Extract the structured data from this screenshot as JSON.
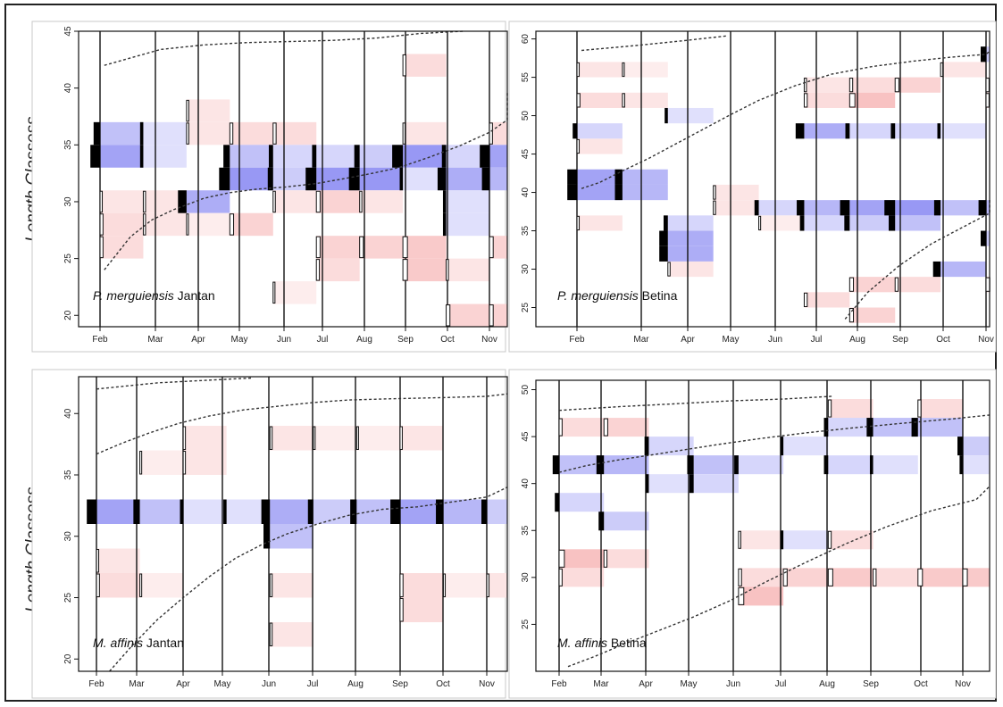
{
  "y_axis_label": "Length Classess",
  "colors": {
    "positive": "#f28a8a",
    "negative": "#7676f0",
    "peak": "#000000",
    "curve": "#333333"
  },
  "chart_data": [
    {
      "type": "heatmap",
      "panel": "top-left",
      "species_italic": "P. merguiensis",
      "sex": " Jantan",
      "xlabels": [
        "Feb",
        "Mar",
        "Apr",
        "May",
        "Jun",
        "Jul",
        "Aug",
        "Sep",
        "Oct",
        "Nov"
      ],
      "ylim": [
        19,
        45
      ],
      "yticks": [
        20,
        25,
        30,
        35,
        40,
        45
      ],
      "growth_curves": [
        {
          "x": [
            0.1,
            1.4,
            2.4,
            3.4,
            4.4,
            5.4,
            6.4,
            7.4,
            8.4
          ],
          "y": [
            42,
            43.4,
            43.8,
            44,
            44.1,
            44.2,
            44.4,
            44.8,
            45
          ]
        },
        {
          "x": [
            0.1,
            0.7,
            1.2,
            1.7,
            2.4,
            3.0,
            3.6,
            4.3,
            5.0,
            5.6,
            6.3,
            6.9,
            7.6,
            8.3,
            9.0,
            9.6,
            10.5
          ],
          "y": [
            24,
            26.9,
            28.4,
            29.3,
            30.3,
            30.8,
            31.1,
            31.3,
            31.6,
            32,
            32.5,
            33,
            33.9,
            34.9,
            36.1,
            37.2,
            39.6
          ]
        }
      ],
      "bins": [
        {
          "m": 0,
          "y": 36,
          "v": -0.6
        },
        {
          "m": 0,
          "y": 34,
          "v": -0.9
        },
        {
          "m": 0,
          "y": 30,
          "v": 0.3
        },
        {
          "m": 0,
          "y": 28,
          "v": 0.4
        },
        {
          "m": 0,
          "y": 26,
          "v": 0.4
        },
        {
          "m": 1,
          "y": 36,
          "v": -0.3
        },
        {
          "m": 1,
          "y": 34,
          "v": -0.3
        },
        {
          "m": 1,
          "y": 30,
          "v": 0.3
        },
        {
          "m": 1,
          "y": 28,
          "v": 0.3
        },
        {
          "m": 2,
          "y": 38,
          "v": 0.3
        },
        {
          "m": 2,
          "y": 36,
          "v": 0.3
        },
        {
          "m": 2,
          "y": 30,
          "v": -0.8
        },
        {
          "m": 2,
          "y": 28,
          "v": 0.2
        },
        {
          "m": 3,
          "y": 36,
          "v": 0.4
        },
        {
          "m": 3,
          "y": 34,
          "v": -0.6
        },
        {
          "m": 3,
          "y": 32,
          "v": -1
        },
        {
          "m": 3,
          "y": 28,
          "v": 0.5
        },
        {
          "m": 4,
          "y": 36,
          "v": 0.4
        },
        {
          "m": 4,
          "y": 34,
          "v": -0.4
        },
        {
          "m": 4,
          "y": 32,
          "v": -0.5
        },
        {
          "m": 4,
          "y": 30,
          "v": 0.3
        },
        {
          "m": 4,
          "y": 22,
          "v": 0.2
        },
        {
          "m": 5,
          "y": 34,
          "v": -0.4
        },
        {
          "m": 5,
          "y": 32,
          "v": -1
        },
        {
          "m": 5,
          "y": 30,
          "v": 0.5
        },
        {
          "m": 5,
          "y": 26,
          "v": 0.5
        },
        {
          "m": 5,
          "y": 24,
          "v": 0.4
        },
        {
          "m": 6,
          "y": 34,
          "v": -0.5
        },
        {
          "m": 6,
          "y": 32,
          "v": -1
        },
        {
          "m": 6,
          "y": 30,
          "v": 0.3
        },
        {
          "m": 6,
          "y": 26,
          "v": 0.5
        },
        {
          "m": 7,
          "y": 42,
          "v": 0.4
        },
        {
          "m": 7,
          "y": 36,
          "v": 0.3
        },
        {
          "m": 7,
          "y": 34,
          "v": -1
        },
        {
          "m": 7,
          "y": 32,
          "v": -0.3
        },
        {
          "m": 7,
          "y": 26,
          "v": 0.6
        },
        {
          "m": 7,
          "y": 24,
          "v": 0.6
        },
        {
          "m": 8,
          "y": 34,
          "v": -0.4
        },
        {
          "m": 8,
          "y": 32,
          "v": -0.8
        },
        {
          "m": 8,
          "y": 30,
          "v": -0.3
        },
        {
          "m": 8,
          "y": 28,
          "v": -0.3
        },
        {
          "m": 8,
          "y": 24,
          "v": 0.3
        },
        {
          "m": 8,
          "y": 20,
          "v": 0.5
        },
        {
          "m": 9,
          "y": 36,
          "v": 0.4
        },
        {
          "m": 9,
          "y": 34,
          "v": -0.9
        },
        {
          "m": 9,
          "y": 32,
          "v": -0.7
        },
        {
          "m": 9,
          "y": 26,
          "v": 0.5
        },
        {
          "m": 9,
          "y": 20,
          "v": 0.5
        }
      ]
    },
    {
      "type": "heatmap",
      "panel": "top-right",
      "species_italic": "P. merguiensis",
      "sex": " Betina",
      "xlabels": [
        "Feb",
        "Mar",
        "Apr",
        "May",
        "Jun",
        "Jul",
        "Aug",
        "Sep",
        "Oct",
        "Nov"
      ],
      "ylim": [
        22.5,
        61
      ],
      "yticks": [
        25,
        30,
        35,
        40,
        45,
        50,
        55,
        60
      ],
      "growth_curves": [
        {
          "x": [
            0.1,
            1.4,
            2.4,
            3.3
          ],
          "y": [
            58.5,
            59.2,
            59.8,
            60.4
          ]
        },
        {
          "x": [
            0.1,
            0.5,
            1.0,
            1.6,
            2.2,
            2.8,
            3.4,
            4.0,
            4.8,
            5.6,
            6.5,
            7.4,
            8.2,
            9.0,
            10.3
          ],
          "y": [
            40.5,
            41.3,
            42.8,
            44.5,
            46.4,
            48.3,
            50.2,
            52,
            53.9,
            55.4,
            56.4,
            57.1,
            57.6,
            58,
            58.4
          ]
        },
        {
          "x": [
            5.9,
            6.4,
            7.1,
            7.8,
            8.5,
            9.3,
            10.3
          ],
          "y": [
            23.5,
            27,
            30.5,
            33.3,
            35.5,
            37.3,
            39.3
          ]
        }
      ],
      "bins": [
        {
          "m": 0,
          "y": 56,
          "v": 0.3
        },
        {
          "m": 0,
          "y": 52,
          "v": 0.4
        },
        {
          "m": 0,
          "y": 48,
          "v": -0.4
        },
        {
          "m": 0,
          "y": 46,
          "v": 0.3
        },
        {
          "m": 0,
          "y": 42,
          "v": -0.9
        },
        {
          "m": 0,
          "y": 40,
          "v": -0.9
        },
        {
          "m": 0,
          "y": 36,
          "v": 0.3
        },
        {
          "m": 1,
          "y": 56,
          "v": 0.2
        },
        {
          "m": 1,
          "y": 52,
          "v": 0.3
        },
        {
          "m": 1,
          "y": 42,
          "v": -0.7
        },
        {
          "m": 1,
          "y": 40,
          "v": -0.7
        },
        {
          "m": 2,
          "y": 50,
          "v": -0.3
        },
        {
          "m": 2,
          "y": 36,
          "v": -0.4
        },
        {
          "m": 2,
          "y": 34,
          "v": -0.8
        },
        {
          "m": 2,
          "y": 32,
          "v": -0.8
        },
        {
          "m": 2,
          "y": 30,
          "v": 0.3
        },
        {
          "m": 3,
          "y": 40,
          "v": 0.3
        },
        {
          "m": 3,
          "y": 38,
          "v": 0.3
        },
        {
          "m": 4,
          "y": 38,
          "v": -0.4
        },
        {
          "m": 4,
          "y": 36,
          "v": 0.2
        },
        {
          "m": 5,
          "y": 54,
          "v": 0.3
        },
        {
          "m": 5,
          "y": 52,
          "v": 0.4
        },
        {
          "m": 5,
          "y": 48,
          "v": -0.8
        },
        {
          "m": 5,
          "y": 38,
          "v": -0.7
        },
        {
          "m": 5,
          "y": 36,
          "v": -0.4
        },
        {
          "m": 5,
          "y": 26,
          "v": 0.4
        },
        {
          "m": 6,
          "y": 54,
          "v": 0.4
        },
        {
          "m": 6,
          "y": 52,
          "v": 0.7
        },
        {
          "m": 6,
          "y": 48,
          "v": -0.4
        },
        {
          "m": 6,
          "y": 38,
          "v": -0.9
        },
        {
          "m": 6,
          "y": 36,
          "v": -0.5
        },
        {
          "m": 6,
          "y": 28,
          "v": 0.5
        },
        {
          "m": 6,
          "y": 24,
          "v": 0.5
        },
        {
          "m": 7,
          "y": 54,
          "v": 0.5
        },
        {
          "m": 7,
          "y": 48,
          "v": -0.4
        },
        {
          "m": 7,
          "y": 38,
          "v": -1
        },
        {
          "m": 7,
          "y": 36,
          "v": -0.6
        },
        {
          "m": 7,
          "y": 28,
          "v": 0.4
        },
        {
          "m": 8,
          "y": 56,
          "v": 0.3
        },
        {
          "m": 8,
          "y": 48,
          "v": -0.3
        },
        {
          "m": 8,
          "y": 38,
          "v": -0.6
        },
        {
          "m": 8,
          "y": 30,
          "v": -0.7
        },
        {
          "m": 9,
          "y": 58,
          "v": -0.5
        },
        {
          "m": 9,
          "y": 54,
          "v": 0.4
        },
        {
          "m": 9,
          "y": 52,
          "v": 0.4
        },
        {
          "m": 9,
          "y": 38,
          "v": -0.7
        },
        {
          "m": 9,
          "y": 34,
          "v": -0.5
        },
        {
          "m": 9,
          "y": 28,
          "v": 0.5
        }
      ]
    },
    {
      "type": "heatmap",
      "panel": "bottom-left",
      "species_italic": "M. affinis",
      "sex": " Jantan",
      "xlabels": [
        "Feb",
        "Mar",
        "Apr",
        "May",
        "Jun",
        "Jul",
        "Aug",
        "Sep",
        "Oct",
        "Nov"
      ],
      "ylim": [
        19,
        43
      ],
      "yticks": [
        20,
        25,
        30,
        35,
        40
      ],
      "growth_curves": [
        {
          "x": [
            0,
            1.4,
            2.5,
            3.6
          ],
          "y": [
            42,
            42.5,
            42.7,
            42.9
          ]
        },
        {
          "x": [
            0,
            0.6,
            1.2,
            1.9,
            2.6,
            3.4,
            4.2,
            5.0,
            5.8,
            6.8,
            8.0,
            9.0,
            10.5
          ],
          "y": [
            36.7,
            37.6,
            38.4,
            39.2,
            39.8,
            40.3,
            40.6,
            40.9,
            41.1,
            41.2,
            41.3,
            41.4,
            41.6
          ]
        },
        {
          "x": [
            0.3,
            0.8,
            1.4,
            2.0,
            2.6,
            3.2,
            3.8,
            4.4,
            5.1,
            5.8,
            6.6,
            7.4,
            8.2,
            9.0,
            10.5
          ],
          "y": [
            19,
            21,
            23.2,
            25,
            26.7,
            28.2,
            29.3,
            30.2,
            31,
            31.7,
            32.2,
            32.4,
            32.8,
            33.2,
            34
          ]
        }
      ],
      "bins": [
        {
          "m": 0,
          "y": 32,
          "v": -0.9
        },
        {
          "m": 0,
          "y": 28,
          "v": 0.3
        },
        {
          "m": 0,
          "y": 26,
          "v": 0.4
        },
        {
          "m": 1,
          "y": 36,
          "v": 0.2
        },
        {
          "m": 1,
          "y": 32,
          "v": -0.6
        },
        {
          "m": 1,
          "y": 26,
          "v": 0.2
        },
        {
          "m": 2,
          "y": 38,
          "v": 0.3
        },
        {
          "m": 2,
          "y": 36,
          "v": 0.3
        },
        {
          "m": 2,
          "y": 32,
          "v": -0.3
        },
        {
          "m": 3,
          "y": 32,
          "v": -0.3
        },
        {
          "m": 4,
          "y": 38,
          "v": 0.3
        },
        {
          "m": 4,
          "y": 32,
          "v": -0.8
        },
        {
          "m": 4,
          "y": 30,
          "v": -0.6
        },
        {
          "m": 4,
          "y": 26,
          "v": 0.3
        },
        {
          "m": 4,
          "y": 22,
          "v": 0.3
        },
        {
          "m": 5,
          "y": 38,
          "v": 0.2
        },
        {
          "m": 5,
          "y": 32,
          "v": -0.5
        },
        {
          "m": 6,
          "y": 38,
          "v": 0.2
        },
        {
          "m": 6,
          "y": 32,
          "v": -0.6
        },
        {
          "m": 7,
          "y": 38,
          "v": 0.3
        },
        {
          "m": 7,
          "y": 32,
          "v": -0.9
        },
        {
          "m": 7,
          "y": 26,
          "v": 0.4
        },
        {
          "m": 7,
          "y": 24,
          "v": 0.4
        },
        {
          "m": 8,
          "y": 32,
          "v": -0.7
        },
        {
          "m": 8,
          "y": 26,
          "v": 0.2
        },
        {
          "m": 9,
          "y": 32,
          "v": -0.5
        },
        {
          "m": 9,
          "y": 26,
          "v": 0.3
        }
      ]
    },
    {
      "type": "heatmap",
      "panel": "bottom-right",
      "species_italic": "M. affinis",
      "sex": " Betina",
      "xlabels": [
        "Feb",
        "Mar",
        "Apr",
        "May",
        "Jun",
        "Jul",
        "Aug",
        "Sep",
        "Oct",
        "Nov"
      ],
      "ylim": [
        20,
        51
      ],
      "yticks": [
        25,
        30,
        35,
        40,
        45,
        50
      ],
      "growth_curves": [
        {
          "x": [
            0,
            1.4,
            2.6,
            3.8,
            5.0,
            6.1
          ],
          "y": [
            47.8,
            48.2,
            48.5,
            48.8,
            49,
            49.3
          ]
        },
        {
          "x": [
            0,
            0.6,
            1.3,
            2.0,
            2.8,
            3.6,
            4.5,
            5.5,
            6.5,
            7.6,
            8.8,
            10.1
          ],
          "y": [
            41.2,
            41.9,
            42.5,
            43,
            43.6,
            44.2,
            44.8,
            45.4,
            45.9,
            46.4,
            46.9,
            47.3
          ]
        },
        {
          "x": [
            0.2,
            0.8,
            1.5,
            2.2,
            3.0,
            3.8,
            4.6,
            5.5,
            6.4,
            7.3,
            8.3,
            9.3,
            10.5
          ],
          "y": [
            20.5,
            21.6,
            23,
            24.3,
            25.8,
            27.5,
            29.5,
            31.6,
            33.6,
            35.4,
            37.1,
            38.3,
            39.7
          ]
        }
      ],
      "bins": [
        {
          "m": 0,
          "y": 46,
          "v": 0.4
        },
        {
          "m": 0,
          "y": 42,
          "v": -0.6
        },
        {
          "m": 0,
          "y": 38,
          "v": -0.4
        },
        {
          "m": 0,
          "y": 32,
          "v": 0.7
        },
        {
          "m": 0,
          "y": 30,
          "v": 0.4
        },
        {
          "m": 1,
          "y": 46,
          "v": 0.5
        },
        {
          "m": 1,
          "y": 42,
          "v": -0.7
        },
        {
          "m": 1,
          "y": 36,
          "v": -0.5
        },
        {
          "m": 1,
          "y": 32,
          "v": 0.4
        },
        {
          "m": 2,
          "y": 44,
          "v": -0.4
        },
        {
          "m": 2,
          "y": 40,
          "v": -0.3
        },
        {
          "m": 3,
          "y": 42,
          "v": -0.6
        },
        {
          "m": 3,
          "y": 40,
          "v": -0.4
        },
        {
          "m": 4,
          "y": 42,
          "v": -0.4
        },
        {
          "m": 4,
          "y": 34,
          "v": 0.3
        },
        {
          "m": 4,
          "y": 30,
          "v": 0.4
        },
        {
          "m": 4,
          "y": 28,
          "v": 0.7
        },
        {
          "m": 5,
          "y": 44,
          "v": -0.3
        },
        {
          "m": 5,
          "y": 34,
          "v": -0.3
        },
        {
          "m": 5,
          "y": 30,
          "v": 0.5
        },
        {
          "m": 6,
          "y": 48,
          "v": 0.4
        },
        {
          "m": 6,
          "y": 46,
          "v": -0.4
        },
        {
          "m": 6,
          "y": 42,
          "v": -0.4
        },
        {
          "m": 6,
          "y": 34,
          "v": 0.4
        },
        {
          "m": 6,
          "y": 30,
          "v": 0.6
        },
        {
          "m": 7,
          "y": 46,
          "v": -0.6
        },
        {
          "m": 7,
          "y": 42,
          "v": -0.3
        },
        {
          "m": 7,
          "y": 30,
          "v": 0.4
        },
        {
          "m": 8,
          "y": 48,
          "v": 0.4
        },
        {
          "m": 8,
          "y": 46,
          "v": -0.6
        },
        {
          "m": 8,
          "y": 30,
          "v": 0.6
        },
        {
          "m": 9,
          "y": 44,
          "v": -0.5
        },
        {
          "m": 9,
          "y": 42,
          "v": -0.3
        },
        {
          "m": 9,
          "y": 30,
          "v": 0.6
        }
      ]
    }
  ]
}
